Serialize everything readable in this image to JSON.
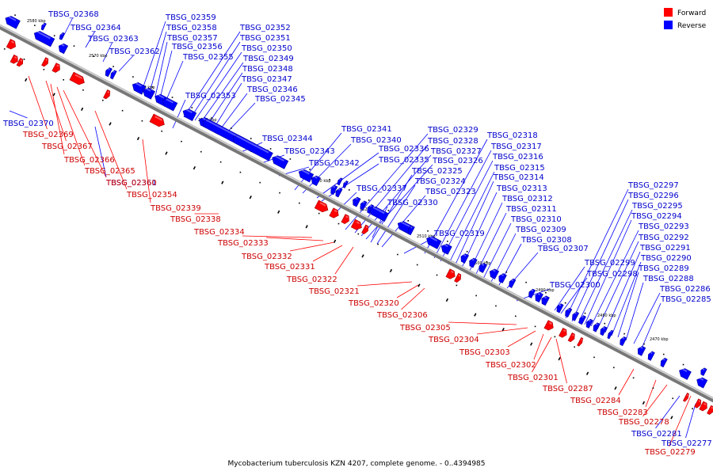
{
  "caption": "Mycobacterium tuberculosis KZN 4207, complete genome. - 0..4394985",
  "legend": [
    {
      "label": "Forward",
      "color": "#ff0000"
    },
    {
      "label": "Reverse",
      "color": "#0000ff"
    }
  ],
  "ticks": [
    "2580 kbp",
    "2570 kbp",
    "2560 kbp",
    "2550 kbp",
    "2540 kbp",
    "2530 kbp",
    "2520 kbp",
    "2510 kbp",
    "2500 kbp",
    "2490 kbp",
    "2480 kbp",
    "2470 kbp"
  ],
  "reverse_genes": [
    "TBSG_02368",
    "TBSG_02364",
    "TBSG_02363",
    "TBSG_02362",
    "TBSG_02359",
    "TBSG_02358",
    "TBSG_02357",
    "TBSG_02356",
    "TBSG_02355",
    "TBSG_02352",
    "TBSG_02351",
    "TBSG_02350",
    "TBSG_02349",
    "TBSG_02348",
    "TBSG_02347",
    "TBSG_02346",
    "TBSG_02345",
    "TBSG_02353",
    "TBSG_02370",
    "TBSG_02361",
    "TBSG_02344",
    "TBSG_02343",
    "TBSG_02342",
    "TBSG_02341",
    "TBSG_02340",
    "TBSG_02336",
    "TBSG_02335",
    "TBSG_02337",
    "TBSG_02329",
    "TBSG_02328",
    "TBSG_02327",
    "TBSG_02326",
    "TBSG_02325",
    "TBSG_02324",
    "TBSG_02323",
    "TBSG_02330",
    "TBSG_02318",
    "TBSG_02317",
    "TBSG_02316",
    "TBSG_02315",
    "TBSG_02314",
    "TBSG_02313",
    "TBSG_02312",
    "TBSG_02311",
    "TBSG_02310",
    "TBSG_02309",
    "TBSG_02308",
    "TBSG_02307",
    "TBSG_02319",
    "TBSG_02300",
    "TBSG_02299",
    "TBSG_02298",
    "TBSG_02297",
    "TBSG_02296",
    "TBSG_02295",
    "TBSG_02294",
    "TBSG_02293",
    "TBSG_02292",
    "TBSG_02291",
    "TBSG_02290",
    "TBSG_02289",
    "TBSG_02288",
    "TBSG_02286",
    "TBSG_02285",
    "TBSG_02281",
    "TBSG_02277"
  ],
  "forward_genes": [
    "TBSG_02369",
    "TBSG_02367",
    "TBSG_02366",
    "TBSG_02365",
    "TBSG_02360",
    "TBSG_02354",
    "TBSG_02339",
    "TBSG_02338",
    "TBSG_02334",
    "TBSG_02333",
    "TBSG_02332",
    "TBSG_02331",
    "TBSG_02322",
    "TBSG_02321",
    "TBSG_02320",
    "TBSG_02306",
    "TBSG_02305",
    "TBSG_02304",
    "TBSG_02303",
    "TBSG_02302",
    "TBSG_02301",
    "TBSG_02287",
    "TBSG_02284",
    "TBSG_02283",
    "TBSG_02278",
    "TBSG_02279"
  ]
}
